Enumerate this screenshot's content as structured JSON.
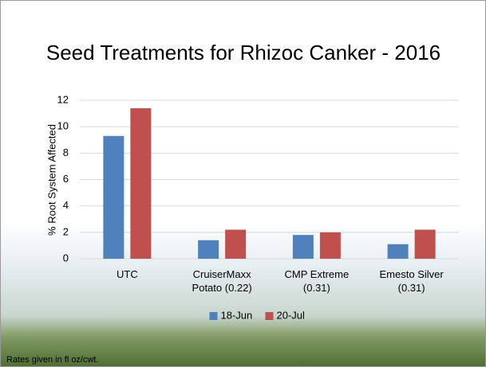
{
  "chart_data": {
    "type": "bar",
    "title": "Seed Treatments for Rhizoc Canker - 2016",
    "y_label": "% Root System Affected",
    "categories": [
      "UTC",
      "CruiserMaxx Potato (0.22)",
      "CMP Extreme (0.31)",
      "Emesto Silver (0.31)"
    ],
    "series": [
      {
        "name": "18-Jun",
        "color": "#4f81bd",
        "values": [
          9.3,
          1.4,
          1.8,
          1.1
        ]
      },
      {
        "name": "20-Jul",
        "color": "#c0504d",
        "values": [
          11.4,
          2.2,
          2.0,
          2.2
        ]
      }
    ],
    "ylim": [
      0,
      12
    ],
    "yticks": [
      0,
      2,
      4,
      6,
      8,
      10,
      12
    ],
    "grid": true,
    "legend": "bottom"
  },
  "footer": "Rates given in fl oz/cwt."
}
